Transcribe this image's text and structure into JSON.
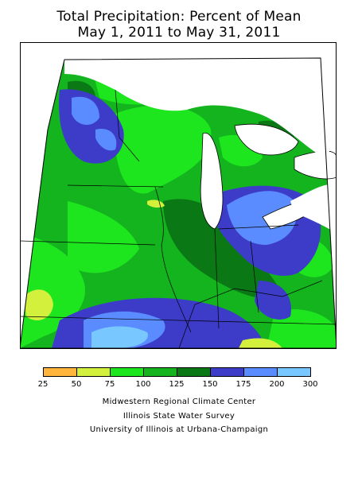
{
  "title_line1": "Total Precipitation: Percent of Mean",
  "title_line2": "May 1, 2011 to May 31, 2011",
  "legend": {
    "bins": [
      {
        "range": "25-50",
        "color": "#ffb43c"
      },
      {
        "range": "50-75",
        "color": "#d2f03c"
      },
      {
        "range": "75-100",
        "color": "#1ee61e"
      },
      {
        "range": "100-125",
        "color": "#14b41e"
      },
      {
        "range": "125-150",
        "color": "#0a7814"
      },
      {
        "range": "150-175",
        "color": "#3c3cc8"
      },
      {
        "range": "175-200",
        "color": "#5a8cff"
      },
      {
        "range": "200-300",
        "color": "#78c8ff"
      }
    ],
    "ticks": [
      "25",
      "50",
      "75",
      "100",
      "125",
      "150",
      "175",
      "200",
      "300"
    ]
  },
  "credits": {
    "line1": "Midwestern Regional Climate Center",
    "line2": "Illinois State Water Survey",
    "line3": "University of Illinois at Urbana-Champaign"
  }
}
